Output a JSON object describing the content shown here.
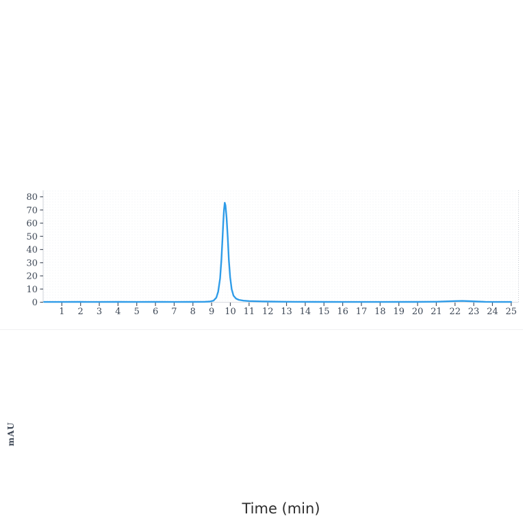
{
  "page": {
    "background_color": "#ffffff"
  },
  "chart_data": {
    "type": "line",
    "title": "",
    "xlabel": "Time (min)",
    "ylabel": "mAU",
    "x_ticks": [
      1,
      2,
      3,
      4,
      5,
      6,
      7,
      8,
      9,
      10,
      11,
      12,
      13,
      14,
      15,
      16,
      17,
      18,
      19,
      20,
      21,
      22,
      23,
      24,
      25
    ],
    "y_ticks": [
      0,
      10,
      20,
      30,
      40,
      50,
      60,
      70,
      80
    ],
    "xlim": [
      0,
      25.5
    ],
    "ylim": [
      0,
      85
    ],
    "grid": false,
    "legend": "none",
    "line_color": "#2f9ce8",
    "axis_color": "#d7dae0",
    "right_border_color": "#c9ccd2",
    "tick_mark_color": "#4a5260",
    "tick_label_color": "#3c4654",
    "axis_title_color": "#3c4654",
    "xlabel_color": "#2e2e2e",
    "plot_bg_dot_color": "#eef0f3",
    "peak_annotation": {
      "apex_time_min": 9.7,
      "apex_height_mAU": 75.5
    },
    "series": [
      {
        "name": "absorbance-trace",
        "points": [
          [
            0.05,
            0.2
          ],
          [
            1,
            0.2
          ],
          [
            2,
            0.25
          ],
          [
            3,
            0.2
          ],
          [
            4,
            0.25
          ],
          [
            5,
            0.2
          ],
          [
            6,
            0.25
          ],
          [
            7,
            0.2
          ],
          [
            8,
            0.25
          ],
          [
            8.6,
            0.3
          ],
          [
            8.9,
            0.5
          ],
          [
            9.1,
            1.2
          ],
          [
            9.25,
            3.5
          ],
          [
            9.35,
            8
          ],
          [
            9.45,
            18
          ],
          [
            9.52,
            32
          ],
          [
            9.58,
            48
          ],
          [
            9.62,
            60
          ],
          [
            9.66,
            70
          ],
          [
            9.7,
            75.5
          ],
          [
            9.74,
            73.5
          ],
          [
            9.8,
            64
          ],
          [
            9.86,
            49
          ],
          [
            9.92,
            32
          ],
          [
            9.99,
            19
          ],
          [
            10.07,
            10
          ],
          [
            10.17,
            5
          ],
          [
            10.3,
            2.8
          ],
          [
            10.45,
            1.8
          ],
          [
            10.7,
            1.2
          ],
          [
            11.0,
            0.9
          ],
          [
            11.5,
            0.7
          ],
          [
            12.0,
            0.5
          ],
          [
            12.8,
            0.35
          ],
          [
            13.5,
            0.3
          ],
          [
            14.5,
            0.25
          ],
          [
            16,
            0.2
          ],
          [
            18,
            0.2
          ],
          [
            20,
            0.25
          ],
          [
            21,
            0.35
          ],
          [
            21.6,
            0.7
          ],
          [
            22.0,
            0.9
          ],
          [
            22.4,
            1.0
          ],
          [
            22.8,
            0.8
          ],
          [
            23.2,
            0.5
          ],
          [
            23.6,
            0.3
          ],
          [
            24.2,
            0.2
          ],
          [
            25,
            0.2
          ]
        ]
      }
    ]
  }
}
